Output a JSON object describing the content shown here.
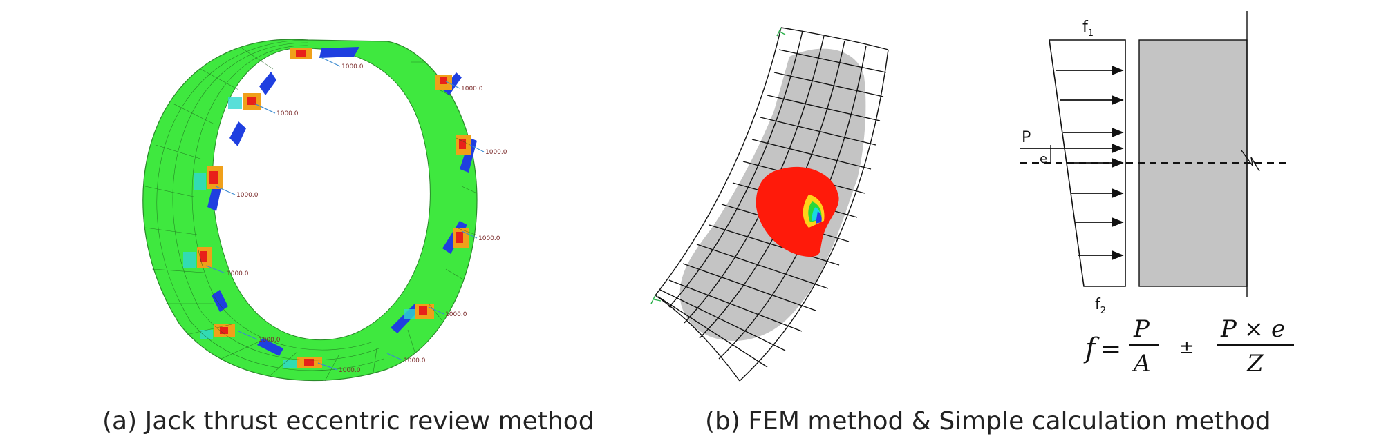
{
  "captions": {
    "a": "(a) Jack thrust eccentric review method",
    "b": "(b) FEM method & Simple calculation method"
  },
  "ring_model": {
    "load_label": "1000.0",
    "colors": {
      "base": "#3fe83f",
      "inner_band": "#1f3fe0",
      "high": "#e8201a",
      "mid": "#f0a01a",
      "low": "#30d8d0"
    }
  },
  "fem_panel": {
    "colors": {
      "deformed": "#c4c4c4",
      "stress_high": "#ff1a0a",
      "mesh": "#111111"
    }
  },
  "simple_calc": {
    "f1": "f",
    "f1_sub": "1",
    "f2": "f",
    "f2_sub": "2",
    "p_label": "P",
    "e_label": "e",
    "formula": {
      "lhs": "f",
      "eq": "=",
      "num1": "P",
      "den1": "A",
      "pm": "±",
      "num2": "P × e",
      "den2": "Z"
    },
    "colors": {
      "block": "#c4c4c4"
    }
  }
}
